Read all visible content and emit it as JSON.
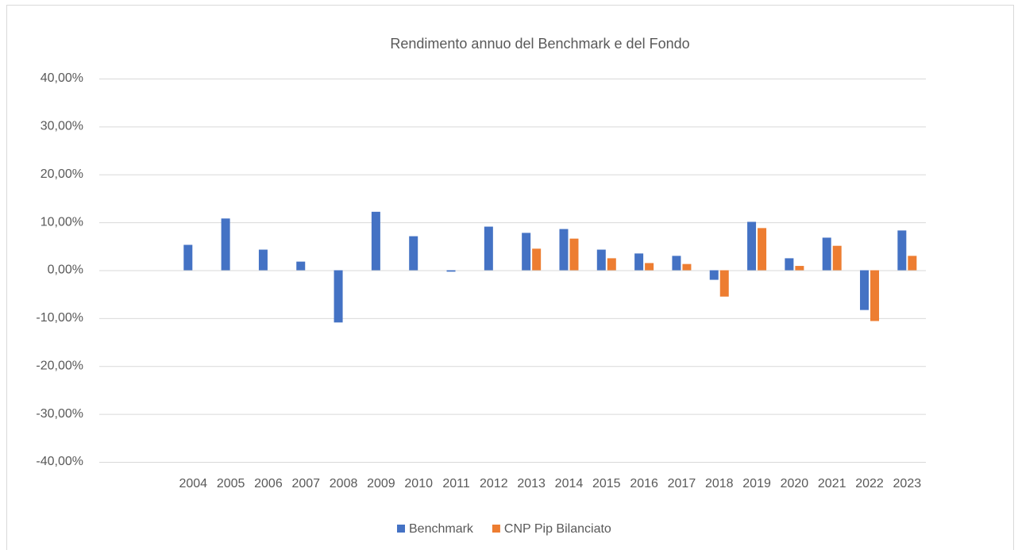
{
  "chart_data": {
    "type": "bar",
    "title": "Rendimento annuo del Benchmark e del Fondo",
    "categories": [
      null,
      null,
      "2004",
      "2005",
      "2006",
      "2007",
      "2008",
      "2009",
      "2010",
      "2011",
      "2012",
      "2013",
      "2014",
      "2015",
      "2016",
      "2017",
      "2018",
      "2019",
      "2020",
      "2021",
      "2022",
      "2023"
    ],
    "series": [
      {
        "name": "Benchmark",
        "color": "#4472c4",
        "values": [
          null,
          null,
          5.3,
          10.8,
          4.3,
          1.8,
          -10.9,
          12.2,
          7.1,
          -0.3,
          9.1,
          7.8,
          8.6,
          4.3,
          3.5,
          3.0,
          -2.0,
          10.1,
          2.5,
          6.8,
          -8.3,
          8.3
        ]
      },
      {
        "name": "CNP Pip Bilanciato",
        "color": "#ed7d31",
        "values": [
          null,
          null,
          null,
          null,
          null,
          null,
          null,
          null,
          null,
          null,
          null,
          4.5,
          6.6,
          2.5,
          1.5,
          1.3,
          -5.5,
          8.8,
          0.9,
          5.1,
          -10.6,
          3.0
        ]
      }
    ],
    "ylim": [
      -40,
      40
    ],
    "yticks": [
      {
        "value": -40,
        "label": "-40,00%"
      },
      {
        "value": -30,
        "label": "-30,00%"
      },
      {
        "value": -20,
        "label": "-20,00%"
      },
      {
        "value": -10,
        "label": "-10,00%"
      },
      {
        "value": 0,
        "label": "0,00%"
      },
      {
        "value": 10,
        "label": "10,00%"
      },
      {
        "value": 20,
        "label": "20,00%"
      },
      {
        "value": 30,
        "label": "30,00%"
      },
      {
        "value": 40,
        "label": "40,00%"
      }
    ],
    "grid": true,
    "legend": "bottom"
  }
}
